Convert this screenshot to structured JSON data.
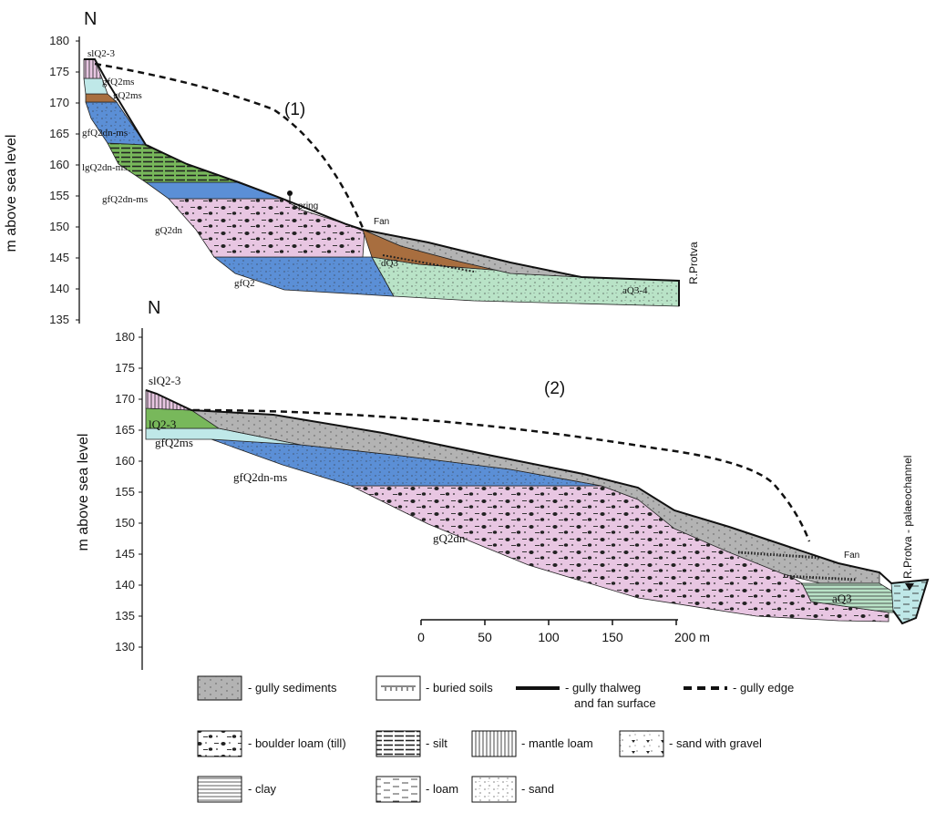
{
  "panel1": {
    "north": "N",
    "number": "(1)",
    "y_axis_label": "m above sea level",
    "y_ticks": [
      "180",
      "175",
      "170",
      "165",
      "160",
      "155",
      "150",
      "145",
      "140",
      "135"
    ],
    "units": {
      "slQ23": "slQ2-3",
      "gfQ2ms_top": "gfQ2ms",
      "gQ2ms": "gQ2ms",
      "gfQ2dnms": "gfQ2dn-ms",
      "lgQ2dnms": "lgQ2dn-ms",
      "gfQ2dnms_b": "gfQ2dn-ms",
      "gQ2dn": "gQ2dn",
      "gfQ2": "gfQ2",
      "dQ3": "dQ3",
      "aQ34": "aQ3-4"
    },
    "spring": "spring",
    "fan": "Fan",
    "river": "R.Protva"
  },
  "panel2": {
    "north": "N",
    "number": "(2)",
    "y_axis_label": "m above sea level",
    "y_ticks": [
      "180",
      "175",
      "170",
      "165",
      "160",
      "155",
      "150",
      "145",
      "140",
      "135",
      "130"
    ],
    "units": {
      "slQ23": "slQ2-3",
      "lQ23": "lQ2-3",
      "gfQ2ms": "gfQ2ms",
      "gfQ2dnms": "gfQ2dn-ms",
      "gQ2dn": "gQ2dn",
      "aQ3": "aQ3"
    },
    "fan": "Fan",
    "river": "R.Protva - palaeochannel",
    "scale_ticks": [
      "0",
      "50",
      "100",
      "150",
      "200 m"
    ]
  },
  "legend": {
    "gully_sediments": "- gully sediments",
    "buried_soils": "- buried soils",
    "thalweg_1": "- gully thalweg",
    "thalweg_2": "and fan surface",
    "gully_edge": "- gully edge",
    "boulder_loam": "- boulder loam (till)",
    "silt": "- silt",
    "mantle_loam": "- mantle loam",
    "sand_gravel": "- sand with gravel",
    "clay": "- clay",
    "loam": "- loam",
    "sand": "- sand"
  },
  "colors": {
    "pink": "#e8c6e2",
    "blue": "#5b8fd6",
    "lightgreen": "#b9e3c7",
    "green": "#78b85b",
    "brown": "#a86e3f",
    "gray": "#b3b3b3",
    "cyan": "#bfe8e8"
  }
}
